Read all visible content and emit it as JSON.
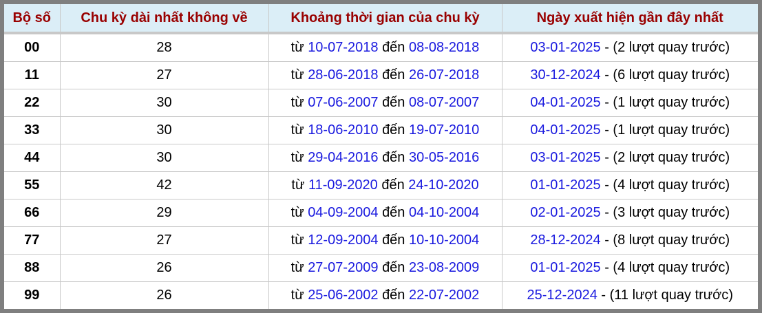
{
  "headers": [
    "Bộ số",
    "Chu kỳ dài nhất không về",
    "Khoảng thời gian của chu kỳ",
    "Ngày xuất hiện gần đây nhất"
  ],
  "labels": {
    "from": "từ",
    "to": "đến",
    "turns_before": "lượt quay trước"
  },
  "colors": {
    "header_text": "#990000",
    "header_bg": "#dbeef7",
    "date_link": "#1a1adf"
  },
  "rows": [
    {
      "number": "00",
      "cycle": "28",
      "start": "10-07-2018",
      "end": "08-08-2018",
      "last": "03-01-2025",
      "turns": "2"
    },
    {
      "number": "11",
      "cycle": "27",
      "start": "28-06-2018",
      "end": "26-07-2018",
      "last": "30-12-2024",
      "turns": "6"
    },
    {
      "number": "22",
      "cycle": "30",
      "start": "07-06-2007",
      "end": "08-07-2007",
      "last": "04-01-2025",
      "turns": "1"
    },
    {
      "number": "33",
      "cycle": "30",
      "start": "18-06-2010",
      "end": "19-07-2010",
      "last": "04-01-2025",
      "turns": "1"
    },
    {
      "number": "44",
      "cycle": "30",
      "start": "29-04-2016",
      "end": "30-05-2016",
      "last": "03-01-2025",
      "turns": "2"
    },
    {
      "number": "55",
      "cycle": "42",
      "start": "11-09-2020",
      "end": "24-10-2020",
      "last": "01-01-2025",
      "turns": "4"
    },
    {
      "number": "66",
      "cycle": "29",
      "start": "04-09-2004",
      "end": "04-10-2004",
      "last": "02-01-2025",
      "turns": "3"
    },
    {
      "number": "77",
      "cycle": "27",
      "start": "12-09-2004",
      "end": "10-10-2004",
      "last": "28-12-2024",
      "turns": "8"
    },
    {
      "number": "88",
      "cycle": "26",
      "start": "27-07-2009",
      "end": "23-08-2009",
      "last": "01-01-2025",
      "turns": "4"
    },
    {
      "number": "99",
      "cycle": "26",
      "start": "25-06-2002",
      "end": "22-07-2002",
      "last": "25-12-2024",
      "turns": "11"
    }
  ]
}
